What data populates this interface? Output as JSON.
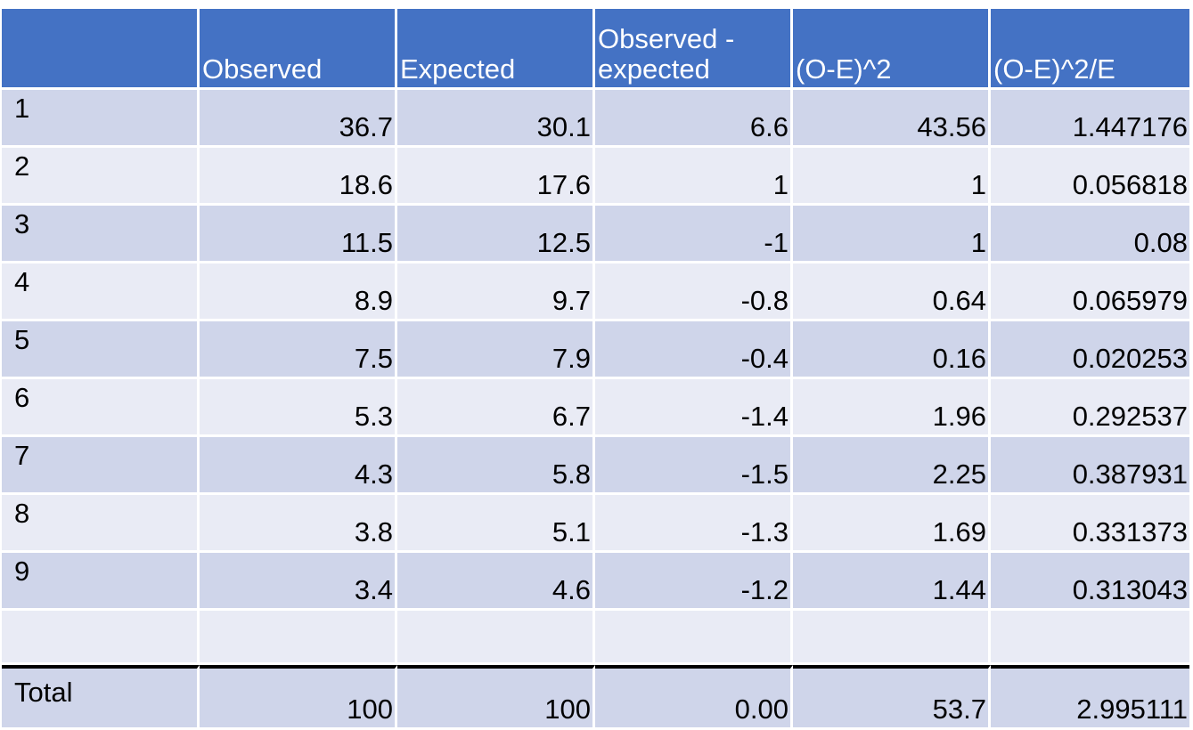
{
  "table": {
    "headers": [
      "",
      "Observed",
      "Expected",
      "Observed - expected",
      "(O-E)^2",
      "(O-E)^2/E"
    ],
    "rows": [
      {
        "label": "1",
        "observed": "36.7",
        "expected": "30.1",
        "diff": "6.6",
        "sq": "43.56",
        "ratio": "1.447176"
      },
      {
        "label": "2",
        "observed": "18.6",
        "expected": "17.6",
        "diff": "1",
        "sq": "1",
        "ratio": "0.056818"
      },
      {
        "label": "3",
        "observed": "11.5",
        "expected": "12.5",
        "diff": "-1",
        "sq": "1",
        "ratio": "0.08"
      },
      {
        "label": "4",
        "observed": "8.9",
        "expected": "9.7",
        "diff": "-0.8",
        "sq": "0.64",
        "ratio": "0.065979"
      },
      {
        "label": "5",
        "observed": "7.5",
        "expected": "7.9",
        "diff": "-0.4",
        "sq": "0.16",
        "ratio": "0.020253"
      },
      {
        "label": "6",
        "observed": "5.3",
        "expected": "6.7",
        "diff": "-1.4",
        "sq": "1.96",
        "ratio": "0.292537"
      },
      {
        "label": "7",
        "observed": "4.3",
        "expected": "5.8",
        "diff": "-1.5",
        "sq": "2.25",
        "ratio": "0.387931"
      },
      {
        "label": "8",
        "observed": "3.8",
        "expected": "5.1",
        "diff": "-1.3",
        "sq": "1.69",
        "ratio": "0.331373"
      },
      {
        "label": "9",
        "observed": "3.4",
        "expected": "4.6",
        "diff": "-1.2",
        "sq": "1.44",
        "ratio": "0.313043"
      }
    ],
    "total": {
      "label": "Total",
      "observed": "100",
      "expected": "100",
      "diff": "0.00",
      "sq": "53.7",
      "ratio": "2.995111"
    }
  },
  "colors": {
    "header_bg": "#4472c4",
    "row_odd_bg": "#cfd5ea",
    "row_even_bg": "#e9ebf5",
    "total_rule": "#000000"
  }
}
